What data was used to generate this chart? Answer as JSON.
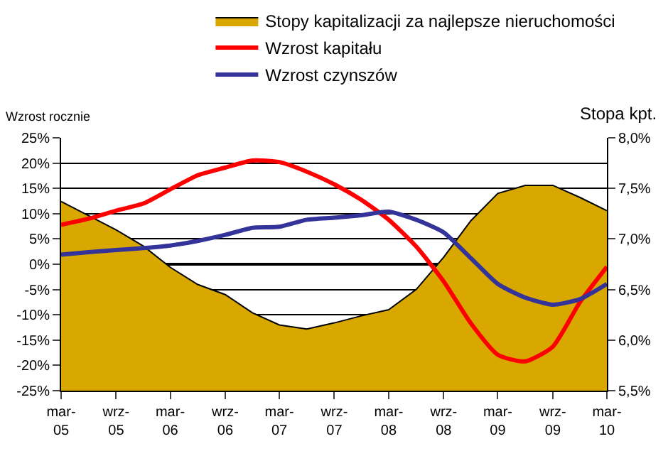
{
  "chart_data": {
    "type": "line",
    "ylabel": "Wzrost rocznie",
    "y2label": "Stopa kpt.",
    "x": [
      "2005-03",
      "2005-06",
      "2005-09",
      "2005-12",
      "2006-03",
      "2006-06",
      "2006-09",
      "2006-12",
      "2007-03",
      "2007-06",
      "2007-09",
      "2007-12",
      "2008-03",
      "2008-06",
      "2008-09",
      "2008-12",
      "2009-03",
      "2009-06",
      "2009-09",
      "2009-12",
      "2010-03"
    ],
    "series": [
      {
        "name": "Stopy kapitalizacji za najlepsze nieruchomości",
        "type": "area",
        "axis": "y2",
        "color": "#d8a800",
        "values": [
          7.37,
          7.23,
          7.09,
          6.93,
          6.72,
          6.55,
          6.45,
          6.27,
          6.15,
          6.11,
          6.17,
          6.24,
          6.3,
          6.5,
          6.82,
          7.18,
          7.45,
          7.53,
          7.53,
          7.41,
          7.28
        ]
      },
      {
        "name": "Wzrost kapitału",
        "color": "#ff0000",
        "values": [
          7.8,
          9.0,
          10.6,
          12.0,
          14.8,
          17.6,
          19.1,
          20.5,
          20.2,
          18.3,
          15.8,
          12.7,
          8.8,
          3.5,
          -3.4,
          -11.7,
          -17.9,
          -19.2,
          -16.3,
          -7.5,
          -0.5
        ]
      },
      {
        "name": "Wzrost czynszów",
        "color": "#333399",
        "values": [
          1.9,
          2.4,
          2.8,
          3.2,
          3.7,
          4.6,
          5.8,
          7.2,
          7.4,
          8.8,
          9.2,
          9.7,
          10.4,
          8.8,
          6.3,
          1.2,
          -3.9,
          -6.6,
          -8.0,
          -6.9,
          -3.9
        ]
      }
    ],
    "xlim": [
      "2005-03",
      "2010-03"
    ],
    "xticks": [
      {
        "value": "2005-03",
        "label": "mar-\n05"
      },
      {
        "value": "2005-09",
        "label": "wrz-\n05"
      },
      {
        "value": "2006-03",
        "label": "mar-\n06"
      },
      {
        "value": "2006-09",
        "label": "wrz-\n06"
      },
      {
        "value": "2007-03",
        "label": "mar-\n07"
      },
      {
        "value": "2007-09",
        "label": "wrz-\n07"
      },
      {
        "value": "2008-03",
        "label": "mar-\n08"
      },
      {
        "value": "2008-09",
        "label": "wrz-\n08"
      },
      {
        "value": "2009-03",
        "label": "mar-\n09"
      },
      {
        "value": "2009-09",
        "label": "wrz-\n09"
      },
      {
        "value": "2010-03",
        "label": "mar-\n10"
      }
    ],
    "ylim": [
      -25,
      25
    ],
    "yticks": [
      {
        "value": -25,
        "label": "-25%"
      },
      {
        "value": -20,
        "label": "-20%"
      },
      {
        "value": -15,
        "label": "-15%"
      },
      {
        "value": -10,
        "label": "-10%"
      },
      {
        "value": -5,
        "label": "-5%"
      },
      {
        "value": 0,
        "label": "0%"
      },
      {
        "value": 5,
        "label": "5%"
      },
      {
        "value": 10,
        "label": "10%"
      },
      {
        "value": 15,
        "label": "15%"
      },
      {
        "value": 20,
        "label": "20%"
      },
      {
        "value": 25,
        "label": "25%"
      }
    ],
    "y2lim": [
      5.5,
      8.0
    ],
    "y2ticks": [
      {
        "value": 5.5,
        "label": "5,5%"
      },
      {
        "value": 6.0,
        "label": "6,0%"
      },
      {
        "value": 6.5,
        "label": "6,5%"
      },
      {
        "value": 7.0,
        "label": "7,0%"
      },
      {
        "value": 7.5,
        "label": "7,5%"
      },
      {
        "value": 8.0,
        "label": "8,0%"
      }
    ],
    "grid": "y",
    "legend": "top",
    "marker": "none",
    "line_style": "solid"
  }
}
